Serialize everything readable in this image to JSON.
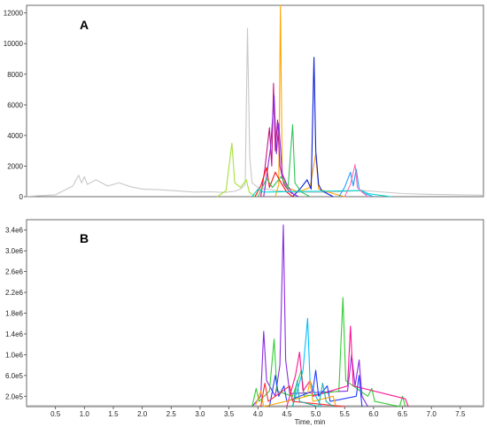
{
  "chart_data": [
    {
      "type": "line",
      "panel_label": "A",
      "xlim": [
        0,
        7.9
      ],
      "ylim": [
        0,
        12500
      ],
      "yticks": [
        "0",
        "2000",
        "4000",
        "6000",
        "8000",
        "10000",
        "12000"
      ],
      "ytick_values": [
        0,
        2000,
        4000,
        6000,
        8000,
        10000,
        12000
      ],
      "grid": false,
      "legend": "none",
      "series": [
        {
          "color": "#c8c8c8",
          "points": [
            [
              0,
              20
            ],
            [
              0.5,
              120
            ],
            [
              0.8,
              700
            ],
            [
              0.9,
              1400
            ],
            [
              0.95,
              900
            ],
            [
              1.0,
              1300
            ],
            [
              1.05,
              800
            ],
            [
              1.2,
              1100
            ],
            [
              1.4,
              700
            ],
            [
              1.6,
              900
            ],
            [
              1.8,
              650
            ],
            [
              2.0,
              500
            ],
            [
              2.3,
              450
            ],
            [
              2.6,
              380
            ],
            [
              2.9,
              300
            ],
            [
              3.2,
              320
            ],
            [
              3.4,
              280
            ],
            [
              3.6,
              350
            ],
            [
              3.7,
              500
            ],
            [
              3.78,
              800
            ],
            [
              3.82,
              11000
            ],
            [
              3.86,
              2500
            ],
            [
              3.9,
              900
            ],
            [
              4.0,
              600
            ],
            [
              4.3,
              400
            ],
            [
              4.6,
              300
            ],
            [
              5.0,
              280
            ],
            [
              5.4,
              320
            ],
            [
              5.8,
              400
            ],
            [
              6.0,
              350
            ],
            [
              6.5,
              200
            ],
            [
              7.0,
              150
            ],
            [
              7.5,
              120
            ],
            [
              7.9,
              100
            ]
          ]
        },
        {
          "color": "#a8e03c",
          "points": [
            [
              3.3,
              0
            ],
            [
              3.45,
              400
            ],
            [
              3.55,
              3500
            ],
            [
              3.6,
              900
            ],
            [
              3.7,
              600
            ],
            [
              3.8,
              1100
            ],
            [
              3.85,
              300
            ],
            [
              3.95,
              0
            ]
          ]
        },
        {
          "color": "#ffa500",
          "points": [
            [
              4.3,
              0
            ],
            [
              4.36,
              800
            ],
            [
              4.39,
              12500
            ],
            [
              4.42,
              1500
            ],
            [
              4.5,
              600
            ],
            [
              4.7,
              300
            ],
            [
              4.9,
              600
            ],
            [
              5.0,
              2800
            ],
            [
              5.05,
              500
            ],
            [
              5.3,
              200
            ],
            [
              5.5,
              0
            ]
          ]
        },
        {
          "color": "#0b1fd6",
          "points": [
            [
              4.6,
              0
            ],
            [
              4.75,
              600
            ],
            [
              4.85,
              1100
            ],
            [
              4.92,
              500
            ],
            [
              4.97,
              9100
            ],
            [
              5.0,
              3000
            ],
            [
              5.05,
              800
            ],
            [
              5.1,
              400
            ],
            [
              5.2,
              200
            ],
            [
              5.3,
              0
            ]
          ]
        },
        {
          "color": "#c71585",
          "points": [
            [
              4.05,
              0
            ],
            [
              4.12,
              1800
            ],
            [
              4.2,
              4500
            ],
            [
              4.24,
              2000
            ],
            [
              4.27,
              7400
            ],
            [
              4.3,
              3000
            ],
            [
              4.34,
              5000
            ],
            [
              4.38,
              2000
            ],
            [
              4.45,
              800
            ],
            [
              4.55,
              300
            ],
            [
              4.7,
              0
            ]
          ]
        },
        {
          "color": "#8a2be2",
          "points": [
            [
              4.1,
              0
            ],
            [
              4.22,
              3200
            ],
            [
              4.28,
              6600
            ],
            [
              4.32,
              2800
            ],
            [
              4.36,
              4800
            ],
            [
              4.42,
              1500
            ],
            [
              4.5,
              800
            ],
            [
              4.6,
              200
            ],
            [
              4.7,
              0
            ]
          ]
        },
        {
          "color": "#ff1010",
          "points": [
            [
              3.95,
              0
            ],
            [
              4.05,
              700
            ],
            [
              4.15,
              1900
            ],
            [
              4.2,
              600
            ],
            [
              4.3,
              1600
            ],
            [
              4.4,
              900
            ],
            [
              4.5,
              300
            ],
            [
              4.6,
              0
            ]
          ]
        },
        {
          "color": "#33c25a",
          "points": [
            [
              4.0,
              0
            ],
            [
              4.15,
              1200
            ],
            [
              4.25,
              600
            ],
            [
              4.4,
              1300
            ],
            [
              4.52,
              500
            ],
            [
              4.6,
              4700
            ],
            [
              4.64,
              900
            ],
            [
              4.75,
              300
            ],
            [
              4.9,
              0
            ]
          ]
        },
        {
          "color": "#1ea0ff",
          "points": [
            [
              5.4,
              0
            ],
            [
              5.5,
              600
            ],
            [
              5.6,
              1600
            ],
            [
              5.65,
              700
            ],
            [
              5.7,
              1800
            ],
            [
              5.75,
              500
            ],
            [
              5.85,
              200
            ],
            [
              6.0,
              0
            ]
          ]
        },
        {
          "color": "#00d8d8",
          "points": [
            [
              3.9,
              0
            ],
            [
              4.0,
              500
            ],
            [
              4.1,
              300
            ],
            [
              5.8,
              400
            ],
            [
              5.9,
              200
            ],
            [
              6.1,
              100
            ],
            [
              6.3,
              0
            ]
          ]
        },
        {
          "color": "#ff69b4",
          "points": [
            [
              5.5,
              0
            ],
            [
              5.6,
              800
            ],
            [
              5.68,
              2100
            ],
            [
              5.72,
              600
            ],
            [
              5.8,
              300
            ],
            [
              5.9,
              0
            ]
          ]
        }
      ]
    },
    {
      "type": "line",
      "panel_label": "B",
      "xlabel": "Time, min",
      "xlim": [
        0,
        7.9
      ],
      "ylim": [
        0,
        3600000
      ],
      "yticks": [
        "2.0e5",
        "6.0e5",
        "1.0e6",
        "1.4e6",
        "1.8e6",
        "2.2e6",
        "2.6e6",
        "3.0e6",
        "3.4e6"
      ],
      "ytick_values": [
        200000,
        600000,
        1000000,
        1400000,
        1800000,
        2200000,
        2600000,
        3000000,
        3400000
      ],
      "xticks": [
        "0.5",
        "1.0",
        "1.5",
        "2.0",
        "2.5",
        "3.0",
        "3.5",
        "4.0",
        "4.5",
        "5.0",
        "5.5",
        "6.0",
        "6.5",
        "7.0",
        "7.5"
      ],
      "xtick_values": [
        0.5,
        1.0,
        1.5,
        2.0,
        2.5,
        3.0,
        3.5,
        4.0,
        4.5,
        5.0,
        5.5,
        6.0,
        6.5,
        7.0,
        7.5
      ],
      "grid": false,
      "legend": "none",
      "series": [
        {
          "color": "#c8c8c8",
          "points": [
            [
              0,
              20000
            ],
            [
              1.0,
              20000
            ],
            [
              2.0,
              20000
            ],
            [
              3.0,
              20000
            ],
            [
              3.8,
              20000
            ],
            [
              7.9,
              20000
            ]
          ]
        },
        {
          "color": "#8a2be2",
          "points": [
            [
              3.9,
              0
            ],
            [
              4.05,
              200000
            ],
            [
              4.1,
              1450000
            ],
            [
              4.15,
              500000
            ],
            [
              4.3,
              200000
            ],
            [
              4.38,
              800000
            ],
            [
              4.44,
              3500000
            ],
            [
              4.48,
              900000
            ],
            [
              4.55,
              250000
            ],
            [
              5.55,
              300000
            ],
            [
              5.62,
              1000000
            ],
            [
              5.68,
              400000
            ],
            [
              5.75,
              900000
            ],
            [
              5.8,
              200000
            ],
            [
              5.9,
              0
            ]
          ]
        },
        {
          "color": "#32cd32",
          "points": [
            [
              3.9,
              0
            ],
            [
              3.97,
              350000
            ],
            [
              4.02,
              100000
            ],
            [
              4.2,
              300000
            ],
            [
              4.28,
              1300000
            ],
            [
              4.33,
              300000
            ],
            [
              4.6,
              200000
            ],
            [
              4.75,
              700000
            ],
            [
              4.8,
              200000
            ],
            [
              5.4,
              300000
            ],
            [
              5.47,
              2100000
            ],
            [
              5.52,
              500000
            ],
            [
              5.9,
              200000
            ],
            [
              5.97,
              350000
            ],
            [
              6.02,
              100000
            ],
            [
              6.45,
              0
            ],
            [
              6.5,
              200000
            ],
            [
              6.55,
              0
            ]
          ]
        },
        {
          "color": "#00bfff",
          "points": [
            [
              4.6,
              0
            ],
            [
              4.78,
              700000
            ],
            [
              4.86,
              1700000
            ],
            [
              4.9,
              500000
            ],
            [
              5.0,
              200000
            ],
            [
              5.1,
              0
            ]
          ]
        },
        {
          "color": "#ff1493",
          "points": [
            [
              4.5,
              0
            ],
            [
              4.65,
              600000
            ],
            [
              4.72,
              1050000
            ],
            [
              4.78,
              300000
            ],
            [
              4.9,
              500000
            ],
            [
              4.95,
              200000
            ],
            [
              5.55,
              400000
            ],
            [
              5.6,
              1550000
            ],
            [
              5.65,
              400000
            ],
            [
              6.55,
              150000
            ],
            [
              6.6,
              0
            ]
          ]
        },
        {
          "color": "#1e3cff",
          "points": [
            [
              4.2,
              0
            ],
            [
              4.3,
              600000
            ],
            [
              4.36,
              200000
            ],
            [
              4.45,
              400000
            ],
            [
              4.5,
              100000
            ],
            [
              4.95,
              300000
            ],
            [
              5.0,
              700000
            ],
            [
              5.05,
              200000
            ],
            [
              5.2,
              400000
            ],
            [
              5.25,
              100000
            ],
            [
              5.7,
              200000
            ],
            [
              5.75,
              600000
            ],
            [
              5.8,
              0
            ]
          ]
        },
        {
          "color": "#ffa500",
          "points": [
            [
              3.95,
              0
            ],
            [
              4.05,
              300000
            ],
            [
              4.1,
              0
            ],
            [
              4.85,
              200000
            ],
            [
              4.9,
              500000
            ],
            [
              4.95,
              100000
            ],
            [
              5.3,
              200000
            ],
            [
              5.35,
              0
            ]
          ]
        },
        {
          "color": "#ff3030",
          "points": [
            [
              4.05,
              0
            ],
            [
              4.12,
              450000
            ],
            [
              4.18,
              100000
            ],
            [
              4.55,
              400000
            ],
            [
              4.6,
              100000
            ],
            [
              5.5,
              0
            ]
          ]
        },
        {
          "color": "#20b2aa",
          "points": [
            [
              4.6,
              0
            ],
            [
              4.68,
              500000
            ],
            [
              4.72,
              100000
            ],
            [
              5.05,
              0
            ],
            [
              5.12,
              450000
            ],
            [
              5.18,
              100000
            ],
            [
              5.3,
              0
            ]
          ]
        }
      ]
    }
  ]
}
